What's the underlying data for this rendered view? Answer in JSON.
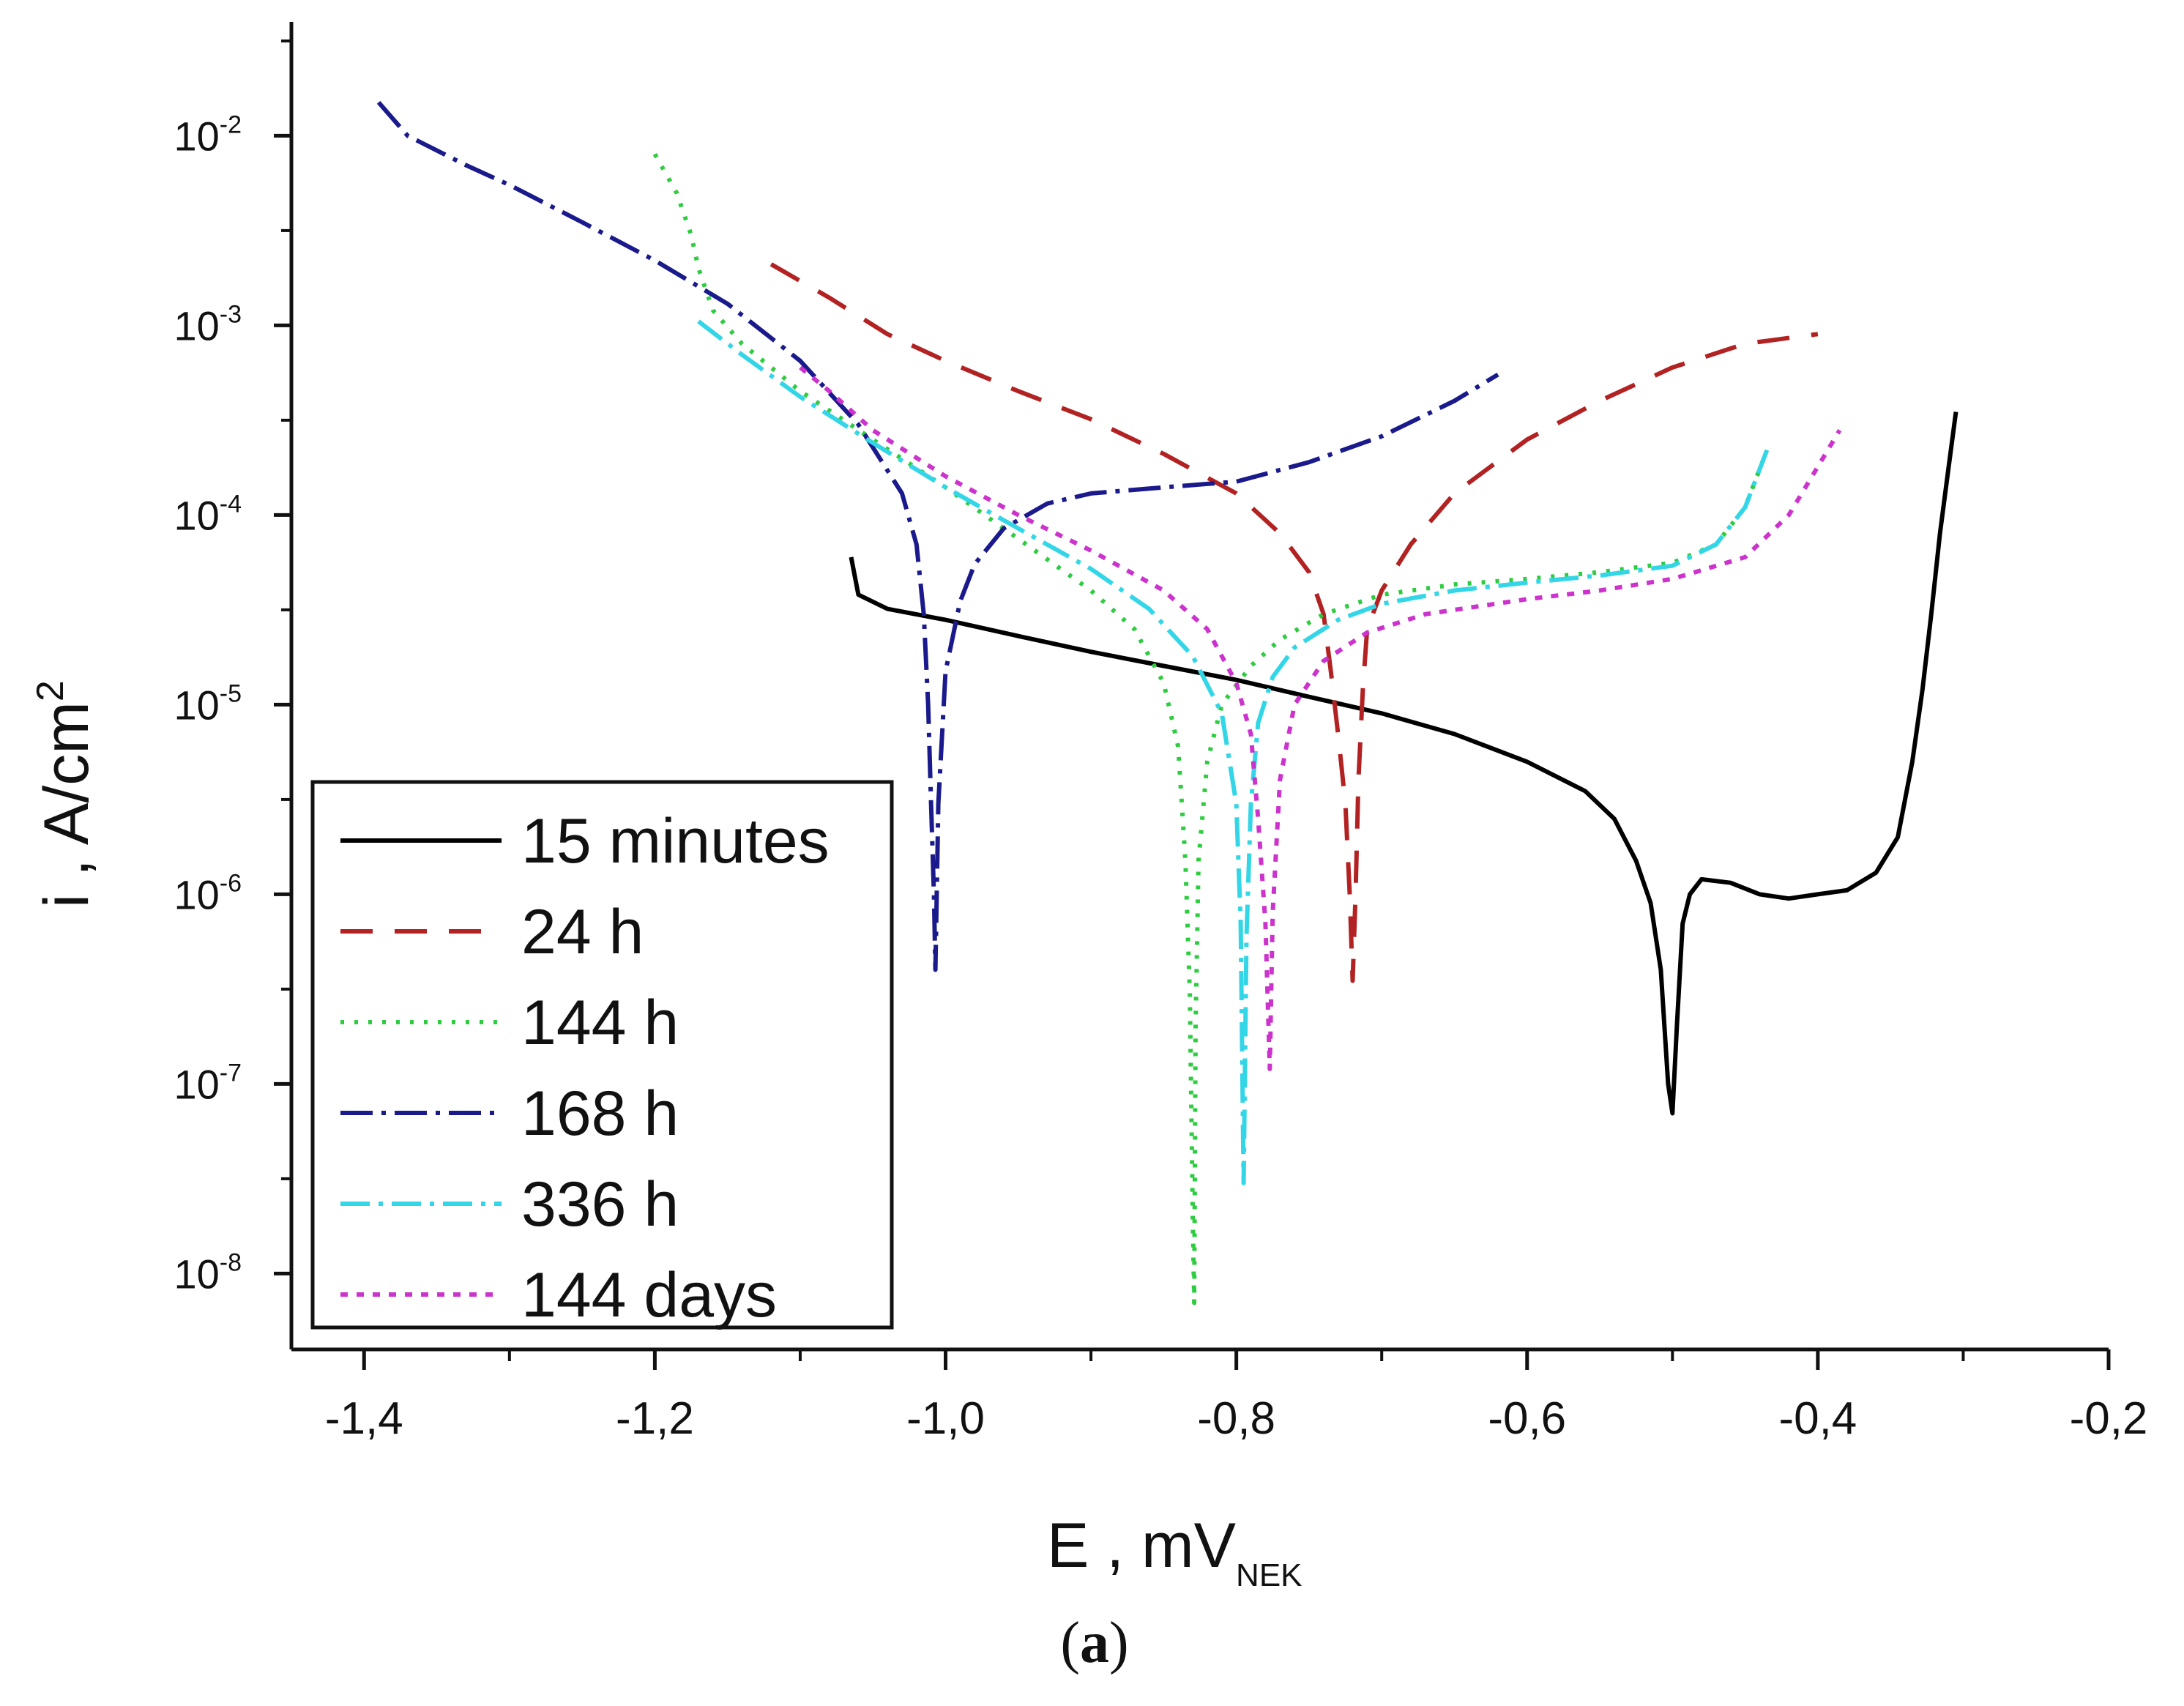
{
  "chart_data": {
    "type": "line",
    "y_scale": "log",
    "xlim": [
      -1.45,
      -0.2
    ],
    "ylim_log10": [
      -8.4,
      -1.4
    ],
    "x_ticks": [
      -1.4,
      -1.2,
      -1.0,
      -0.8,
      -0.6,
      -0.4,
      -0.2
    ],
    "x_tick_labels": [
      "-1,4",
      "-1,2",
      "-1,0",
      "-0,8",
      "-0,6",
      "-0,4",
      "-0,2"
    ],
    "y_ticks_exp": [
      -2,
      -3,
      -4,
      -5,
      -6,
      -7,
      -8
    ],
    "y_tick_base": "10",
    "xlabel": {
      "main": "E , mV",
      "sub": "NEK"
    },
    "ylabel": {
      "main": "i , A/cm",
      "sup": "2"
    },
    "caption": {
      "open": "(",
      "letter": "a",
      "close": ")"
    },
    "legend_position": "bottom-left",
    "series": [
      {
        "name": "15 minutes",
        "color": "#000000",
        "dash": "",
        "points": [
          [
            -1.065,
            6e-05
          ],
          [
            -1.06,
            3.8e-05
          ],
          [
            -1.04,
            3.2e-05
          ],
          [
            -1.0,
            2.8e-05
          ],
          [
            -0.95,
            2.3e-05
          ],
          [
            -0.9,
            1.9e-05
          ],
          [
            -0.85,
            1.6e-05
          ],
          [
            -0.8,
            1.35e-05
          ],
          [
            -0.75,
            1.1e-05
          ],
          [
            -0.7,
            9e-06
          ],
          [
            -0.65,
            7e-06
          ],
          [
            -0.6,
            5e-06
          ],
          [
            -0.56,
            3.5e-06
          ],
          [
            -0.54,
            2.5e-06
          ],
          [
            -0.525,
            1.5e-06
          ],
          [
            -0.515,
            9e-07
          ],
          [
            -0.508,
            4e-07
          ],
          [
            -0.503,
            1e-07
          ],
          [
            -0.5,
            7e-08
          ],
          [
            -0.497,
            2e-07
          ],
          [
            -0.493,
            7e-07
          ],
          [
            -0.488,
            1e-06
          ],
          [
            -0.48,
            1.2e-06
          ],
          [
            -0.46,
            1.15e-06
          ],
          [
            -0.44,
            1e-06
          ],
          [
            -0.42,
            9.5e-07
          ],
          [
            -0.4,
            1e-06
          ],
          [
            -0.38,
            1.05e-06
          ],
          [
            -0.36,
            1.3e-06
          ],
          [
            -0.345,
            2e-06
          ],
          [
            -0.335,
            5e-06
          ],
          [
            -0.328,
            1.2e-05
          ],
          [
            -0.322,
            3e-05
          ],
          [
            -0.316,
            8e-05
          ],
          [
            -0.31,
            0.00018
          ],
          [
            -0.305,
            0.00035
          ]
        ]
      },
      {
        "name": "24 h",
        "color": "#b22222",
        "dash": "44,30",
        "points": [
          [
            -1.12,
            0.0021
          ],
          [
            -1.08,
            0.0014
          ],
          [
            -1.04,
            0.0009
          ],
          [
            -1.0,
            0.00065
          ],
          [
            -0.95,
            0.00045
          ],
          [
            -0.9,
            0.00032
          ],
          [
            -0.85,
            0.00021
          ],
          [
            -0.8,
            0.00013
          ],
          [
            -0.77,
            8e-05
          ],
          [
            -0.75,
            5e-05
          ],
          [
            -0.74,
            3e-05
          ],
          [
            -0.735,
            1.5e-05
          ],
          [
            -0.73,
            7e-06
          ],
          [
            -0.725,
            3e-06
          ],
          [
            -0.722,
            1e-06
          ],
          [
            -0.72,
            3.5e-07
          ],
          [
            -0.718,
            1e-06
          ],
          [
            -0.716,
            4e-06
          ],
          [
            -0.713,
            1.2e-05
          ],
          [
            -0.71,
            2.5e-05
          ],
          [
            -0.7,
            4e-05
          ],
          [
            -0.68,
            7e-05
          ],
          [
            -0.65,
            0.00013
          ],
          [
            -0.6,
            0.00025
          ],
          [
            -0.55,
            0.0004
          ],
          [
            -0.5,
            0.0006
          ],
          [
            -0.45,
            0.0008
          ],
          [
            -0.4,
            0.0009
          ]
        ]
      },
      {
        "name": "144 h",
        "color": "#2ecc40",
        "dash": "5,14",
        "points": [
          [
            -1.2,
            0.008
          ],
          [
            -1.185,
            0.005
          ],
          [
            -1.175,
            0.003
          ],
          [
            -1.17,
            0.002
          ],
          [
            -1.16,
            0.0012
          ],
          [
            -1.14,
            0.0008
          ],
          [
            -1.1,
            0.00045
          ],
          [
            -1.05,
            0.00025
          ],
          [
            -1.0,
            0.00014
          ],
          [
            -0.95,
            7.5e-05
          ],
          [
            -0.9,
            4e-05
          ],
          [
            -0.87,
            2.5e-05
          ],
          [
            -0.85,
            1.3e-05
          ],
          [
            -0.84,
            6e-06
          ],
          [
            -0.835,
            1.5e-06
          ],
          [
            -0.832,
            3e-07
          ],
          [
            -0.83,
            2e-08
          ],
          [
            -0.829,
            7e-09
          ],
          [
            -0.828,
            2e-07
          ],
          [
            -0.826,
            1.5e-06
          ],
          [
            -0.82,
            5e-06
          ],
          [
            -0.81,
            1e-05
          ],
          [
            -0.79,
            1.6e-05
          ],
          [
            -0.77,
            2.2e-05
          ],
          [
            -0.74,
            3e-05
          ],
          [
            -0.7,
            3.8e-05
          ],
          [
            -0.65,
            4.3e-05
          ],
          [
            -0.6,
            4.6e-05
          ],
          [
            -0.55,
            5e-05
          ],
          [
            -0.5,
            5.6e-05
          ],
          [
            -0.47,
            7e-05
          ],
          [
            -0.45,
            0.00011
          ],
          [
            -0.435,
            0.00022
          ]
        ]
      },
      {
        "name": "168 h",
        "color": "#1a1a8c",
        "dash": "44,12,6,12",
        "points": [
          [
            -1.39,
            0.015
          ],
          [
            -1.37,
            0.01
          ],
          [
            -1.33,
            0.007
          ],
          [
            -1.3,
            0.0055
          ],
          [
            -1.25,
            0.0035
          ],
          [
            -1.2,
            0.0022
          ],
          [
            -1.15,
            0.0013
          ],
          [
            -1.1,
            0.00065
          ],
          [
            -1.06,
            0.0003
          ],
          [
            -1.03,
            0.00013
          ],
          [
            -1.02,
            7e-05
          ],
          [
            -1.015,
            3e-05
          ],
          [
            -1.012,
            1e-05
          ],
          [
            -1.01,
            3e-06
          ],
          [
            -1.008,
            1e-06
          ],
          [
            -1.007,
            4e-07
          ],
          [
            -1.005,
            3e-06
          ],
          [
            -1.0,
            1.5e-05
          ],
          [
            -0.99,
            3.5e-05
          ],
          [
            -0.98,
            5.5e-05
          ],
          [
            -0.96,
            8.5e-05
          ],
          [
            -0.93,
            0.000115
          ],
          [
            -0.9,
            0.00013
          ],
          [
            -0.85,
            0.00014
          ],
          [
            -0.8,
            0.00015
          ],
          [
            -0.75,
            0.00019
          ],
          [
            -0.7,
            0.00026
          ],
          [
            -0.65,
            0.0004
          ],
          [
            -0.62,
            0.00055
          ]
        ]
      },
      {
        "name": "336 h",
        "color": "#33d6e6",
        "dash": "40,12,6,12",
        "points": [
          [
            -1.17,
            0.00105
          ],
          [
            -1.14,
            0.0007
          ],
          [
            -1.1,
            0.00042
          ],
          [
            -1.05,
            0.00024
          ],
          [
            -1.0,
            0.00014
          ],
          [
            -0.95,
            8.5e-05
          ],
          [
            -0.9,
            5.2e-05
          ],
          [
            -0.86,
            3.2e-05
          ],
          [
            -0.83,
            1.8e-05
          ],
          [
            -0.81,
            9e-06
          ],
          [
            -0.8,
            3e-06
          ],
          [
            -0.797,
            7e-07
          ],
          [
            -0.795,
            3e-08
          ],
          [
            -0.793,
            6e-07
          ],
          [
            -0.79,
            3e-06
          ],
          [
            -0.785,
            8e-06
          ],
          [
            -0.775,
            1.4e-05
          ],
          [
            -0.76,
            2e-05
          ],
          [
            -0.73,
            2.8e-05
          ],
          [
            -0.7,
            3.4e-05
          ],
          [
            -0.65,
            4e-05
          ],
          [
            -0.6,
            4.4e-05
          ],
          [
            -0.55,
            4.8e-05
          ],
          [
            -0.5,
            5.4e-05
          ],
          [
            -0.47,
            7e-05
          ],
          [
            -0.45,
            0.00011
          ],
          [
            -0.435,
            0.00022
          ]
        ]
      },
      {
        "name": "144 days",
        "color": "#cc33cc",
        "dash": "10,12",
        "points": [
          [
            -1.1,
            0.0006
          ],
          [
            -1.08,
            0.00045
          ],
          [
            -1.05,
            0.00028
          ],
          [
            -1.0,
            0.00016
          ],
          [
            -0.95,
            0.0001
          ],
          [
            -0.9,
            6.5e-05
          ],
          [
            -0.85,
            4e-05
          ],
          [
            -0.82,
            2.5e-05
          ],
          [
            -0.8,
            1.3e-05
          ],
          [
            -0.79,
            7e-06
          ],
          [
            -0.785,
            2.5e-06
          ],
          [
            -0.78,
            7e-07
          ],
          [
            -0.777,
            1.2e-07
          ],
          [
            -0.775,
            8e-07
          ],
          [
            -0.77,
            4e-06
          ],
          [
            -0.76,
            1e-05
          ],
          [
            -0.74,
            1.7e-05
          ],
          [
            -0.71,
            2.4e-05
          ],
          [
            -0.67,
            3e-05
          ],
          [
            -0.6,
            3.6e-05
          ],
          [
            -0.55,
            4e-05
          ],
          [
            -0.5,
            4.6e-05
          ],
          [
            -0.45,
            6e-05
          ],
          [
            -0.42,
            0.0001
          ],
          [
            -0.4,
            0.00018
          ],
          [
            -0.385,
            0.00028
          ]
        ]
      }
    ]
  }
}
